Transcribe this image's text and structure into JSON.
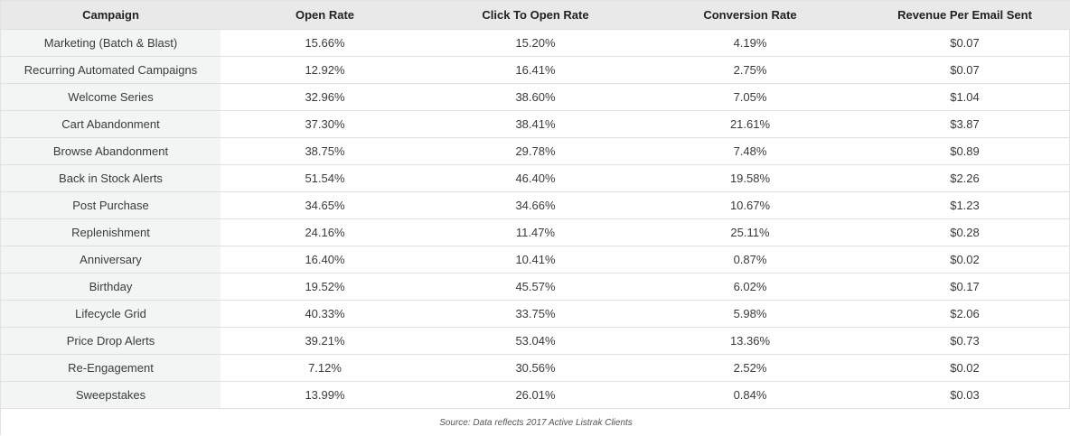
{
  "headers": [
    "Campaign",
    "Open Rate",
    "Click To Open Rate",
    "Conversion Rate",
    "Revenue Per Email Sent"
  ],
  "rows": [
    [
      "Marketing (Batch & Blast)",
      "15.66%",
      "15.20%",
      "4.19%",
      "$0.07"
    ],
    [
      "Recurring Automated Campaigns",
      "12.92%",
      "16.41%",
      "2.75%",
      "$0.07"
    ],
    [
      "Welcome Series",
      "32.96%",
      "38.60%",
      "7.05%",
      "$1.04"
    ],
    [
      "Cart Abandonment",
      "37.30%",
      "38.41%",
      "21.61%",
      "$3.87"
    ],
    [
      "Browse Abandonment",
      "38.75%",
      "29.78%",
      "7.48%",
      "$0.89"
    ],
    [
      "Back in Stock Alerts",
      "51.54%",
      "46.40%",
      "19.58%",
      "$2.26"
    ],
    [
      "Post Purchase",
      "34.65%",
      "34.66%",
      "10.67%",
      "$1.23"
    ],
    [
      "Replenishment",
      "24.16%",
      "11.47%",
      "25.11%",
      "$0.28"
    ],
    [
      "Anniversary",
      "16.40%",
      "10.41%",
      "0.87%",
      "$0.02"
    ],
    [
      "Birthday",
      "19.52%",
      "45.57%",
      "6.02%",
      "$0.17"
    ],
    [
      "Lifecycle Grid",
      "40.33%",
      "33.75%",
      "5.98%",
      "$2.06"
    ],
    [
      "Price Drop Alerts",
      "39.21%",
      "53.04%",
      "13.36%",
      "$0.73"
    ],
    [
      "Re-Engagement",
      "7.12%",
      "30.56%",
      "2.52%",
      "$0.02"
    ],
    [
      "Sweepstakes",
      "13.99%",
      "26.01%",
      "0.84%",
      "$0.03"
    ]
  ],
  "source": "Source: Data reflects 2017 Active Listrak Clients",
  "colors": {
    "header_bg": "#e9e9e9",
    "first_column_bg": "#f3f5f4",
    "row_border": "#e0e0e0"
  }
}
